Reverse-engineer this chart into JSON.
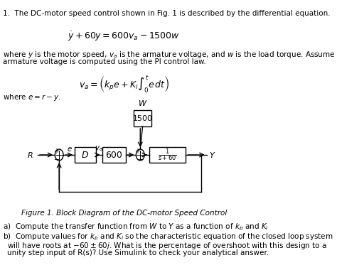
{
  "title_text": "1.  The DC-motor speed control shown in Fig. 1 is described by the differential equation.",
  "eq1": "$\\dot{y} + 60y = 600v_a - 1500w$",
  "para1": "where $y$ is the motor speed, $v_a$ is the armature voltage, and $w$ is the load torque. Assume the\narmature voltage is computed using the PI control law.",
  "eq2": "$v_a = \\left(k_p e + K_i \\int_0^t e\\, dt\\right)$",
  "para2": "where $e = r - y$.",
  "caption": "Figure 1. Block Diagram of the DC-motor Speed Control",
  "part_a": "a)  Compute the transfer function from $W$ to $Y$ as a function of $k_p$ and $K_i$",
  "part_b": "b)  Compute values for $k_p$ and $K_i$ so the characteristic equation of the closed loop system\n     will have roots at $-60 \\pm 60j$. What is the percentage of overshoot with this design to a\n     unity step input of R(s)? Use Simulink to check your analytical answer.",
  "bg_color": "#ffffff",
  "text_color": "#000000",
  "box_color": "#000000",
  "box_fill": "#ffffff"
}
